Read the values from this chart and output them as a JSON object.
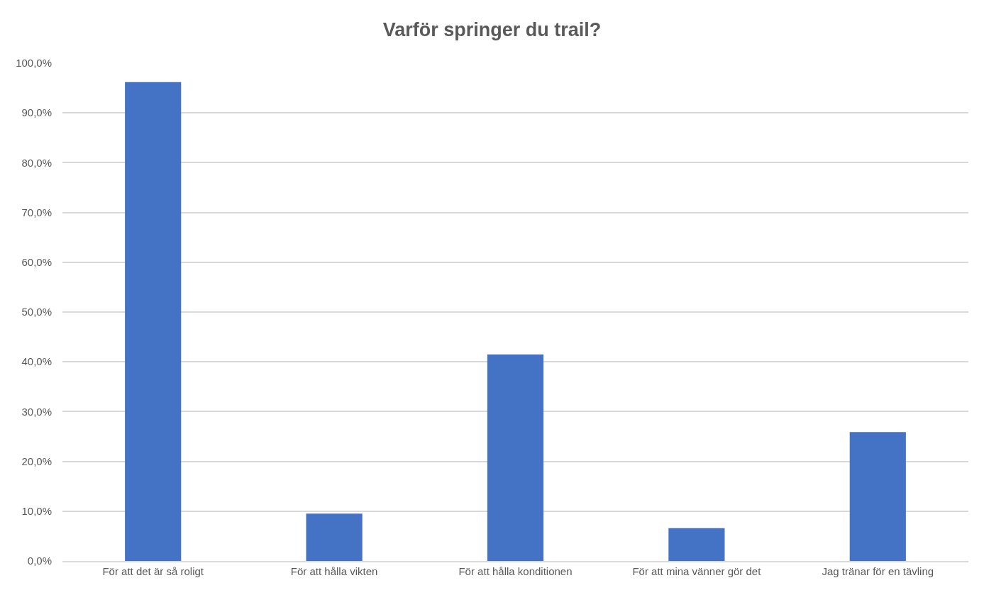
{
  "chart_data": {
    "type": "bar",
    "title": "Varför springer du trail?",
    "categories": [
      "För att det är så roligt",
      "För att hålla vikten",
      "För att hålla konditionen",
      "För att mina vänner gör det",
      "Jag tränar för en tävling"
    ],
    "values": [
      96.2,
      9.5,
      41.5,
      6.6,
      25.9
    ],
    "color": "#4472c4",
    "ylim": [
      0,
      100
    ],
    "yticks": [
      {
        "value": 0,
        "label": "0,0%"
      },
      {
        "value": 10,
        "label": "10,0%"
      },
      {
        "value": 20,
        "label": "20,0%"
      },
      {
        "value": 30,
        "label": "30,0%"
      },
      {
        "value": 40,
        "label": "40,0%"
      },
      {
        "value": 50,
        "label": "50,0%"
      },
      {
        "value": 60,
        "label": "60,0%"
      },
      {
        "value": 70,
        "label": "70,0%"
      },
      {
        "value": 80,
        "label": "80,0%"
      },
      {
        "value": 90,
        "label": "90,0%"
      },
      {
        "value": 100,
        "label": "100,0%"
      }
    ],
    "grid": "y"
  }
}
